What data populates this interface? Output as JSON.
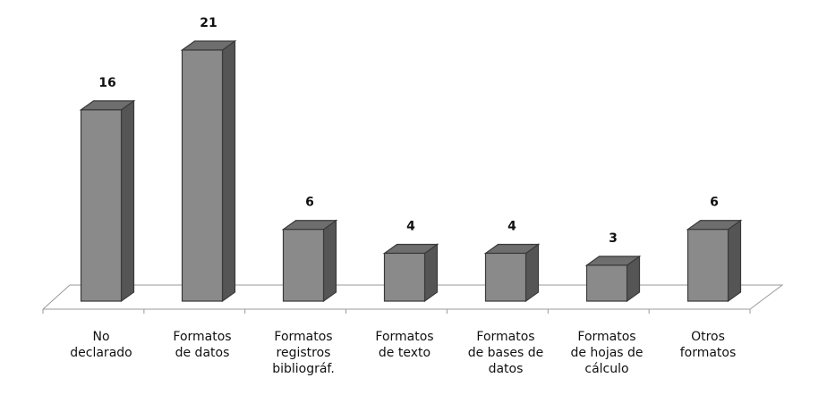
{
  "chart_data": {
    "type": "bar",
    "title": "",
    "xlabel": "",
    "ylabel": "",
    "grid": false,
    "legend": "none",
    "style": "3d-column",
    "ylim": [
      0,
      21
    ],
    "colors": {
      "front": "#8a8a8a",
      "side": "#555555",
      "top": "#6e6e6e",
      "floor": "#9a9a9a"
    },
    "categories": [
      [
        "No",
        "declarado"
      ],
      [
        "Formatos",
        "de datos"
      ],
      [
        "Formatos",
        "registros",
        "bibliográf."
      ],
      [
        "Formatos",
        "de texto"
      ],
      [
        "Formatos",
        "de bases de",
        "datos"
      ],
      [
        "Formatos",
        "de hojas de",
        "cálculo"
      ],
      [
        "Otros",
        "formatos"
      ]
    ],
    "values": [
      16,
      21,
      6,
      4,
      4,
      3,
      6
    ]
  }
}
